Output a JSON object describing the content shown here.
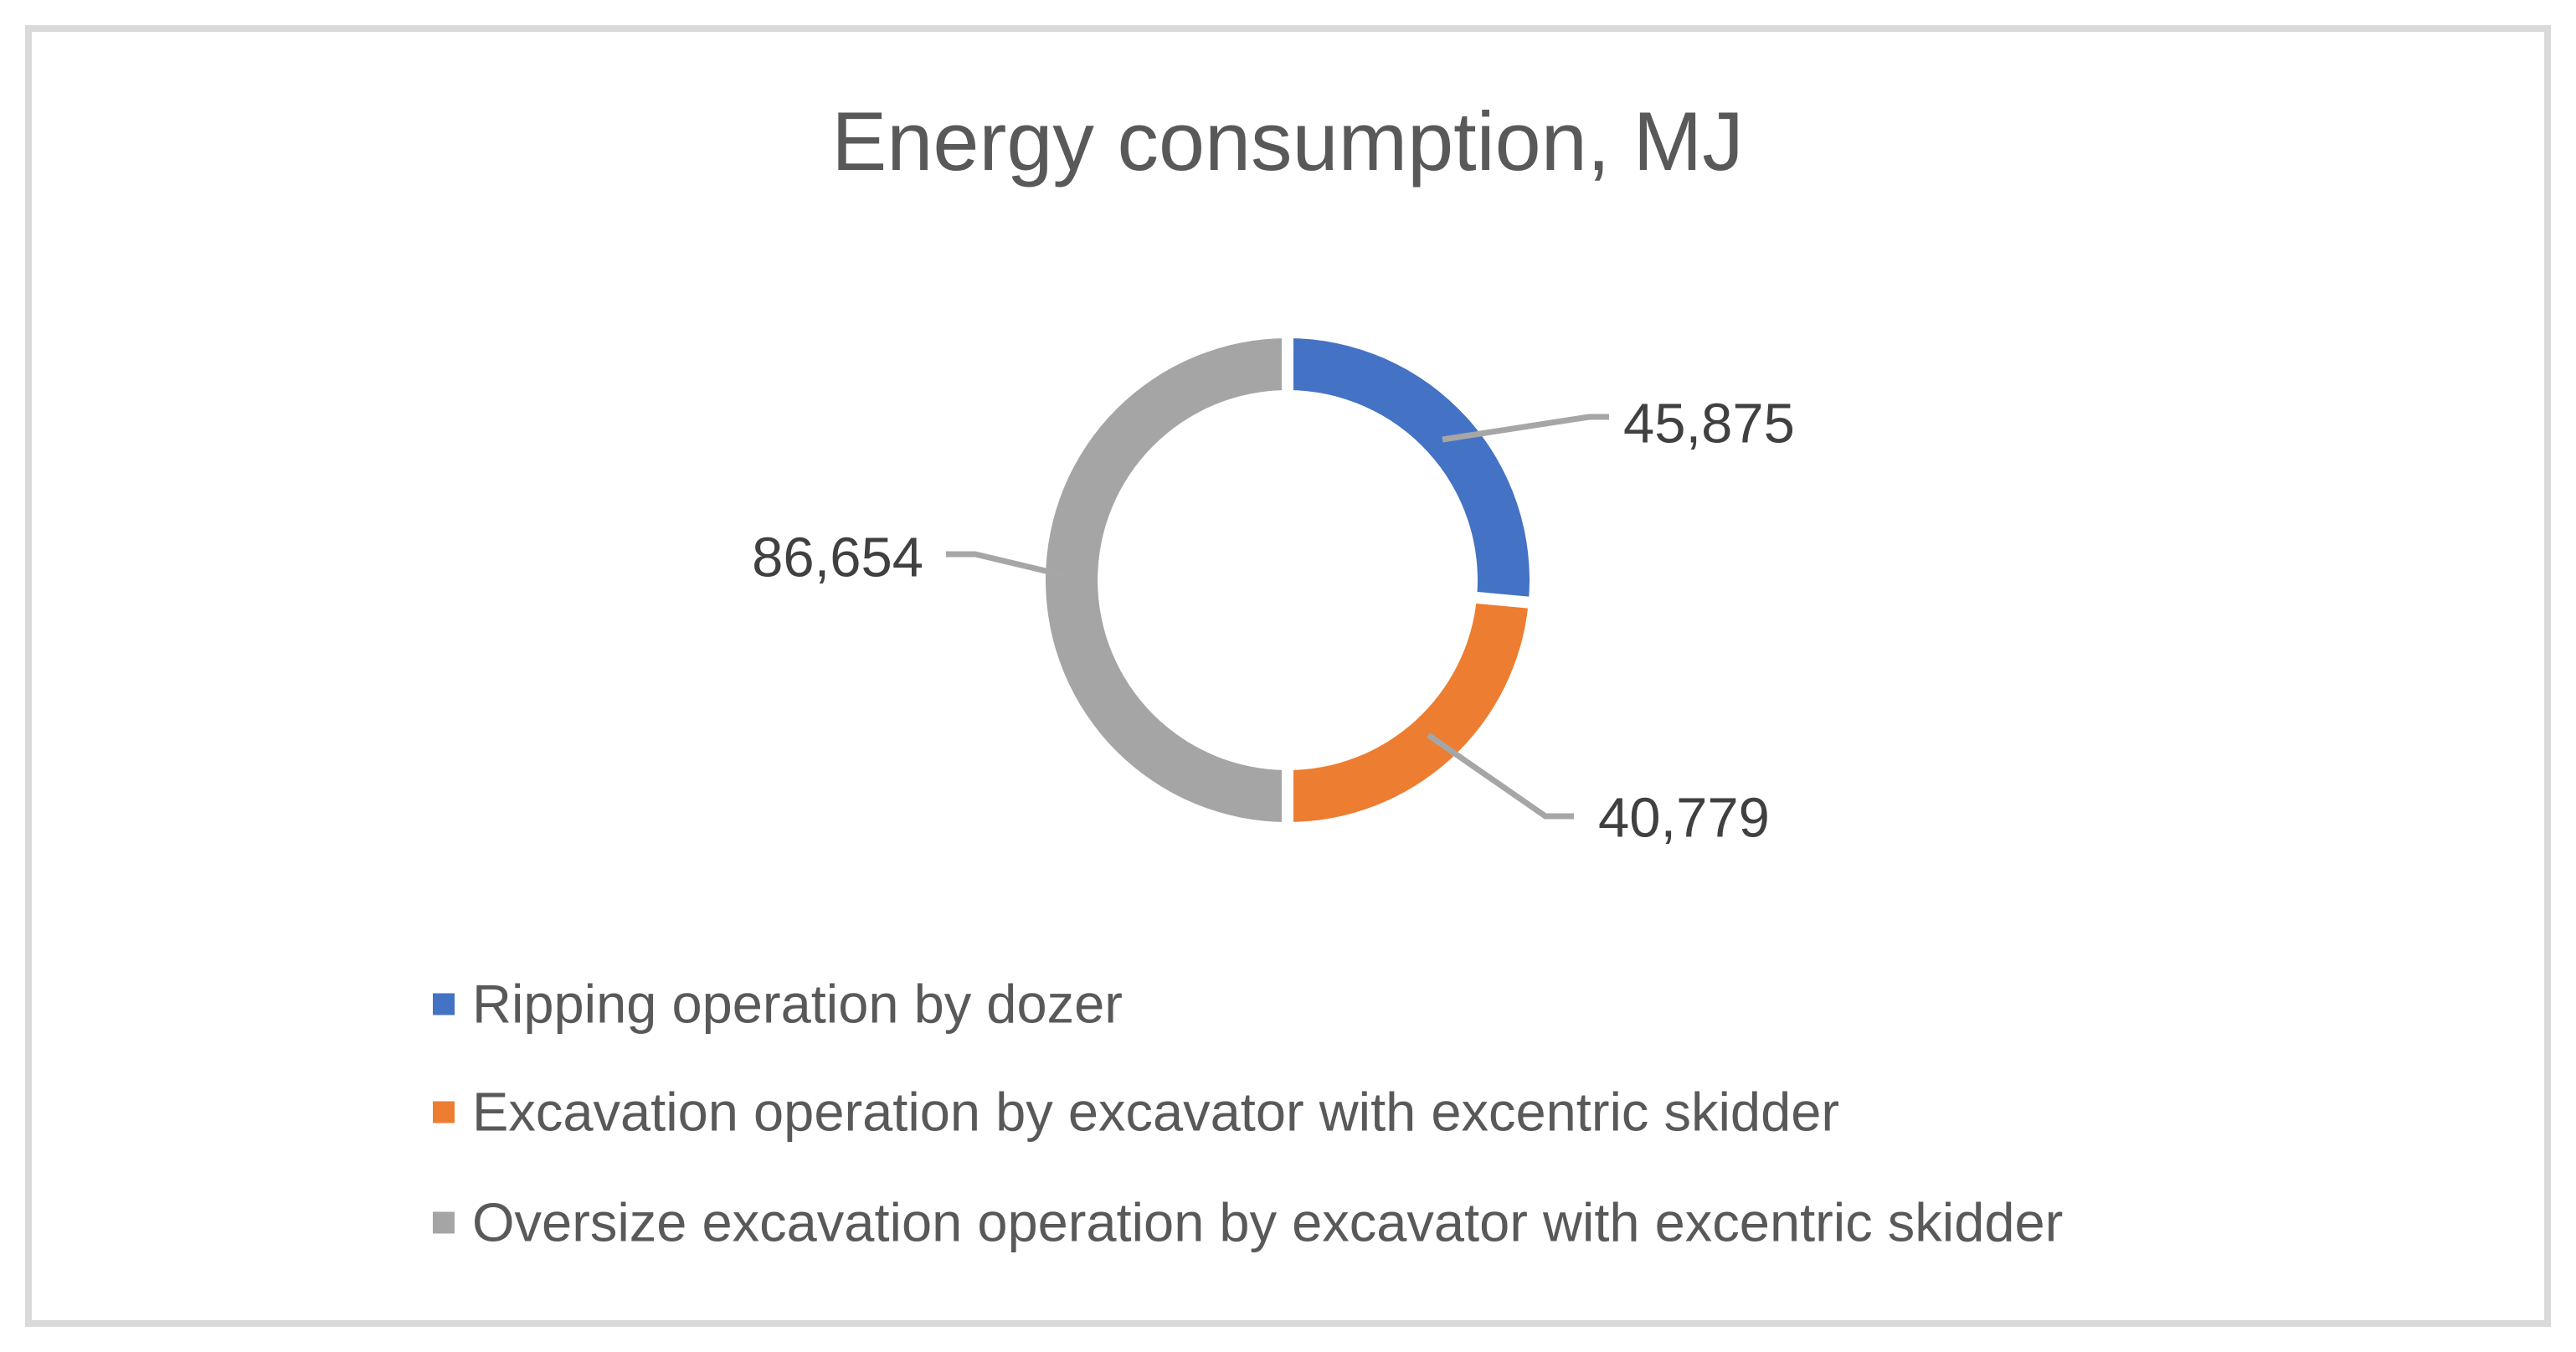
{
  "figure": {
    "background": "#FFFFFF",
    "border_color": "#D9D9D9"
  },
  "chart_data": {
    "type": "pie",
    "subtype": "doughnut",
    "title": "Energy consumption, MJ",
    "categories": [
      "Ripping operation by dozer",
      "Excavation operation by excavator with excentric skidder",
      "Oversize excavation operation by excavator with excentric skidder"
    ],
    "values": [
      45875,
      40779,
      86654
    ],
    "display_values": [
      "45,875",
      "40,779",
      "86,654"
    ],
    "colors": [
      "#4472C4",
      "#ED7D31",
      "#A5A5A5"
    ],
    "start_angle_deg": 0,
    "direction": "clockwise",
    "legend_position": "bottom-left",
    "leader_lines": true,
    "styles": {
      "title_color": "#595959",
      "data_label_color": "#404040",
      "legend_text_color": "#595959",
      "leader_line_color": "#A6A6A6",
      "segment_gap_color": "#FFFFFF"
    }
  }
}
